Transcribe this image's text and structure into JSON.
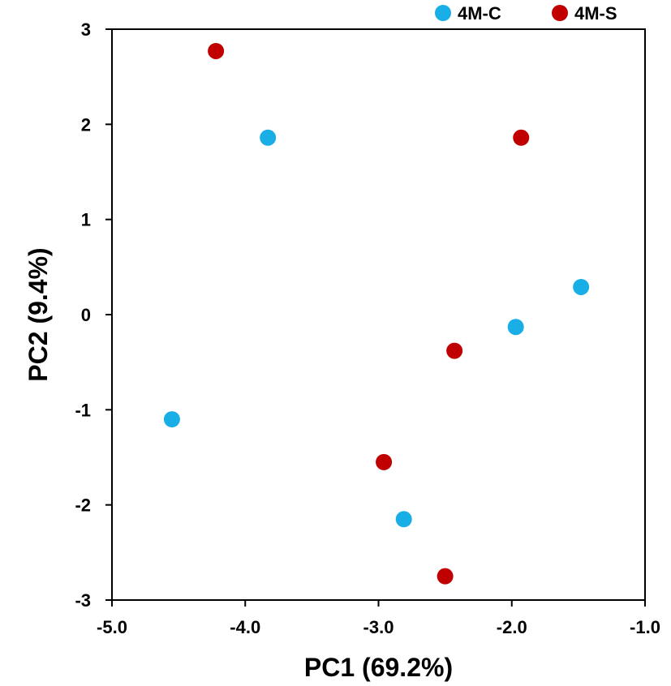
{
  "chart_data": {
    "type": "scatter",
    "title": "",
    "xlabel": "PC1 (69.2%)",
    "ylabel": "PC2 (9.4%)",
    "xlim": [
      -5.0,
      -1.0
    ],
    "ylim": [
      -3,
      3
    ],
    "x_ticks": [
      -5.0,
      -4.0,
      -3.0,
      -2.0,
      -1.0
    ],
    "x_tick_labels": [
      "-5.0",
      "-4.0",
      "-3.0",
      "-2.0",
      "-1.0"
    ],
    "y_ticks": [
      3,
      2,
      1,
      0,
      -1,
      -2,
      -3
    ],
    "y_tick_labels": [
      "3",
      "2",
      "1",
      "0",
      "-1",
      "-2",
      "-3"
    ],
    "grid": false,
    "legend_position": "top-right",
    "series": [
      {
        "name": "4M-C",
        "color": "#1aaee6",
        "points": [
          {
            "x": -3.83,
            "y": 1.86
          },
          {
            "x": -1.48,
            "y": 0.29
          },
          {
            "x": -1.97,
            "y": -0.13
          },
          {
            "x": -4.55,
            "y": -1.1
          },
          {
            "x": -2.81,
            "y": -2.15
          }
        ]
      },
      {
        "name": "4M-S",
        "color": "#c00000",
        "points": [
          {
            "x": -4.22,
            "y": 2.77
          },
          {
            "x": -1.93,
            "y": 1.86
          },
          {
            "x": -2.43,
            "y": -0.38
          },
          {
            "x": -2.96,
            "y": -1.55
          },
          {
            "x": -2.5,
            "y": -2.75
          }
        ]
      }
    ]
  }
}
